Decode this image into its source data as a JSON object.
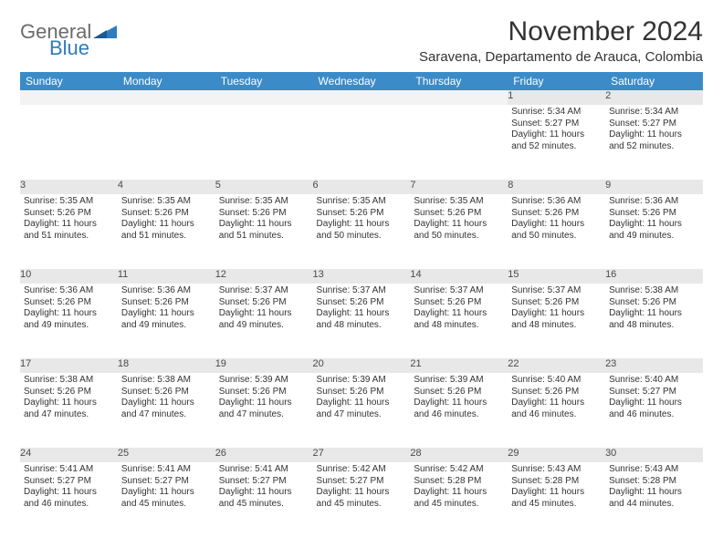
{
  "logo": {
    "line1": "General",
    "line2": "Blue",
    "triangle_color": "#2f7bbf"
  },
  "header": {
    "month_title": "November 2024",
    "location": "Saravena, Departamento de Arauca, Colombia"
  },
  "colors": {
    "header_bg": "#3b8bc8",
    "header_text": "#ffffff",
    "daynum_bg": "#e8e8e8",
    "text": "#333333"
  },
  "weekdays": [
    "Sunday",
    "Monday",
    "Tuesday",
    "Wednesday",
    "Thursday",
    "Friday",
    "Saturday"
  ],
  "weeks": [
    [
      null,
      null,
      null,
      null,
      null,
      {
        "n": "1",
        "sunrise": "5:34 AM",
        "sunset": "5:27 PM",
        "daylight": "11 hours and 52 minutes."
      },
      {
        "n": "2",
        "sunrise": "5:34 AM",
        "sunset": "5:27 PM",
        "daylight": "11 hours and 52 minutes."
      }
    ],
    [
      {
        "n": "3",
        "sunrise": "5:35 AM",
        "sunset": "5:26 PM",
        "daylight": "11 hours and 51 minutes."
      },
      {
        "n": "4",
        "sunrise": "5:35 AM",
        "sunset": "5:26 PM",
        "daylight": "11 hours and 51 minutes."
      },
      {
        "n": "5",
        "sunrise": "5:35 AM",
        "sunset": "5:26 PM",
        "daylight": "11 hours and 51 minutes."
      },
      {
        "n": "6",
        "sunrise": "5:35 AM",
        "sunset": "5:26 PM",
        "daylight": "11 hours and 50 minutes."
      },
      {
        "n": "7",
        "sunrise": "5:35 AM",
        "sunset": "5:26 PM",
        "daylight": "11 hours and 50 minutes."
      },
      {
        "n": "8",
        "sunrise": "5:36 AM",
        "sunset": "5:26 PM",
        "daylight": "11 hours and 50 minutes."
      },
      {
        "n": "9",
        "sunrise": "5:36 AM",
        "sunset": "5:26 PM",
        "daylight": "11 hours and 49 minutes."
      }
    ],
    [
      {
        "n": "10",
        "sunrise": "5:36 AM",
        "sunset": "5:26 PM",
        "daylight": "11 hours and 49 minutes."
      },
      {
        "n": "11",
        "sunrise": "5:36 AM",
        "sunset": "5:26 PM",
        "daylight": "11 hours and 49 minutes."
      },
      {
        "n": "12",
        "sunrise": "5:37 AM",
        "sunset": "5:26 PM",
        "daylight": "11 hours and 49 minutes."
      },
      {
        "n": "13",
        "sunrise": "5:37 AM",
        "sunset": "5:26 PM",
        "daylight": "11 hours and 48 minutes."
      },
      {
        "n": "14",
        "sunrise": "5:37 AM",
        "sunset": "5:26 PM",
        "daylight": "11 hours and 48 minutes."
      },
      {
        "n": "15",
        "sunrise": "5:37 AM",
        "sunset": "5:26 PM",
        "daylight": "11 hours and 48 minutes."
      },
      {
        "n": "16",
        "sunrise": "5:38 AM",
        "sunset": "5:26 PM",
        "daylight": "11 hours and 48 minutes."
      }
    ],
    [
      {
        "n": "17",
        "sunrise": "5:38 AM",
        "sunset": "5:26 PM",
        "daylight": "11 hours and 47 minutes."
      },
      {
        "n": "18",
        "sunrise": "5:38 AM",
        "sunset": "5:26 PM",
        "daylight": "11 hours and 47 minutes."
      },
      {
        "n": "19",
        "sunrise": "5:39 AM",
        "sunset": "5:26 PM",
        "daylight": "11 hours and 47 minutes."
      },
      {
        "n": "20",
        "sunrise": "5:39 AM",
        "sunset": "5:26 PM",
        "daylight": "11 hours and 47 minutes."
      },
      {
        "n": "21",
        "sunrise": "5:39 AM",
        "sunset": "5:26 PM",
        "daylight": "11 hours and 46 minutes."
      },
      {
        "n": "22",
        "sunrise": "5:40 AM",
        "sunset": "5:26 PM",
        "daylight": "11 hours and 46 minutes."
      },
      {
        "n": "23",
        "sunrise": "5:40 AM",
        "sunset": "5:27 PM",
        "daylight": "11 hours and 46 minutes."
      }
    ],
    [
      {
        "n": "24",
        "sunrise": "5:41 AM",
        "sunset": "5:27 PM",
        "daylight": "11 hours and 46 minutes."
      },
      {
        "n": "25",
        "sunrise": "5:41 AM",
        "sunset": "5:27 PM",
        "daylight": "11 hours and 45 minutes."
      },
      {
        "n": "26",
        "sunrise": "5:41 AM",
        "sunset": "5:27 PM",
        "daylight": "11 hours and 45 minutes."
      },
      {
        "n": "27",
        "sunrise": "5:42 AM",
        "sunset": "5:27 PM",
        "daylight": "11 hours and 45 minutes."
      },
      {
        "n": "28",
        "sunrise": "5:42 AM",
        "sunset": "5:28 PM",
        "daylight": "11 hours and 45 minutes."
      },
      {
        "n": "29",
        "sunrise": "5:43 AM",
        "sunset": "5:28 PM",
        "daylight": "11 hours and 45 minutes."
      },
      {
        "n": "30",
        "sunrise": "5:43 AM",
        "sunset": "5:28 PM",
        "daylight": "11 hours and 44 minutes."
      }
    ]
  ],
  "labels": {
    "sunrise": "Sunrise:",
    "sunset": "Sunset:",
    "daylight": "Daylight:"
  }
}
